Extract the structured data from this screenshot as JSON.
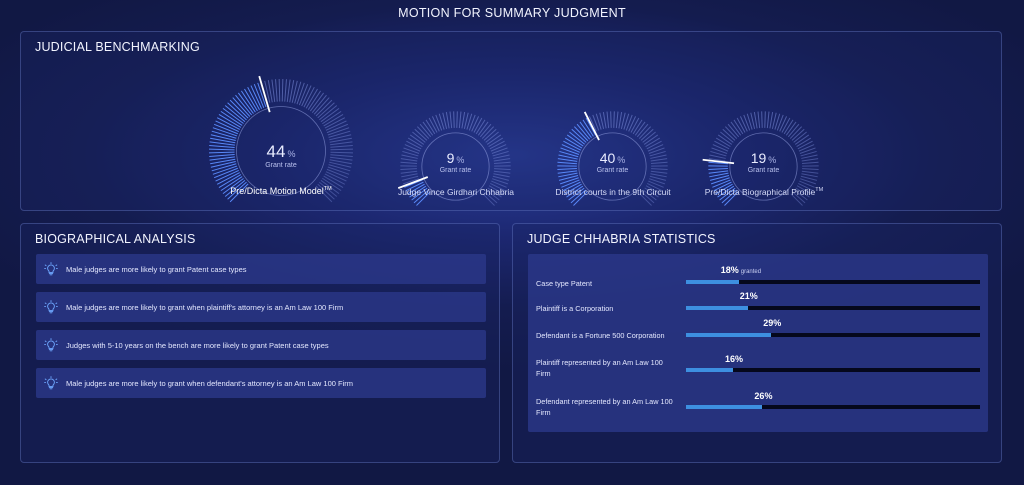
{
  "page": {
    "title": "MOTION FOR SUMMARY JUDGMENT"
  },
  "benchmarking": {
    "title": "JUDICIAL BENCHMARKING",
    "gauges": [
      {
        "value": "44",
        "pct": 44,
        "unit": "%",
        "sub": "Grant rate",
        "label": "Pre/Dicta Motion Model",
        "tm": "TM"
      },
      {
        "value": "9",
        "pct": 9,
        "unit": "%",
        "sub": "Grant rate",
        "label": "Judge Vince Girdhari Chhabria",
        "tm": ""
      },
      {
        "value": "40",
        "pct": 40,
        "unit": "%",
        "sub": "Grant rate",
        "label": "District courts in the 9th Circuit",
        "tm": ""
      },
      {
        "value": "19",
        "pct": 19,
        "unit": "%",
        "sub": "Grant rate",
        "label": "Pre/Dicta Biographical Profile",
        "tm": "TM"
      }
    ]
  },
  "bio": {
    "title": "BIOGRAPHICAL ANALYSIS",
    "icon": "lightbulb-icon",
    "items": [
      "Male judges are more likely to grant Patent case types",
      "Male judges are more likely to grant when plaintiff's attorney is an Am Law 100 Firm",
      "Judges with 5-10 years on the bench are more likely to grant Patent case types",
      "Male judges are more likely to grant when defendant's attorney is an Am Law 100 Firm"
    ]
  },
  "stats": {
    "title": "JUDGE CHHABRIA STATISTICS",
    "bar_color": "#3d8fe0",
    "rows": [
      {
        "label": "Case type Patent",
        "value": 18,
        "display": "18%",
        "unit": "granted"
      },
      {
        "label": "Plaintiff is a Corporation",
        "value": 21,
        "display": "21%",
        "unit": ""
      },
      {
        "label": "Defendant is a Fortune 500 Corporation",
        "value": 29,
        "display": "29%",
        "unit": ""
      },
      {
        "label": "Plaintiff represented by an Am Law 100 Firm",
        "value": 16,
        "display": "16%",
        "unit": ""
      },
      {
        "label": "Defendant represented by an Am Law 100 Firm",
        "value": 26,
        "display": "26%",
        "unit": ""
      }
    ]
  }
}
